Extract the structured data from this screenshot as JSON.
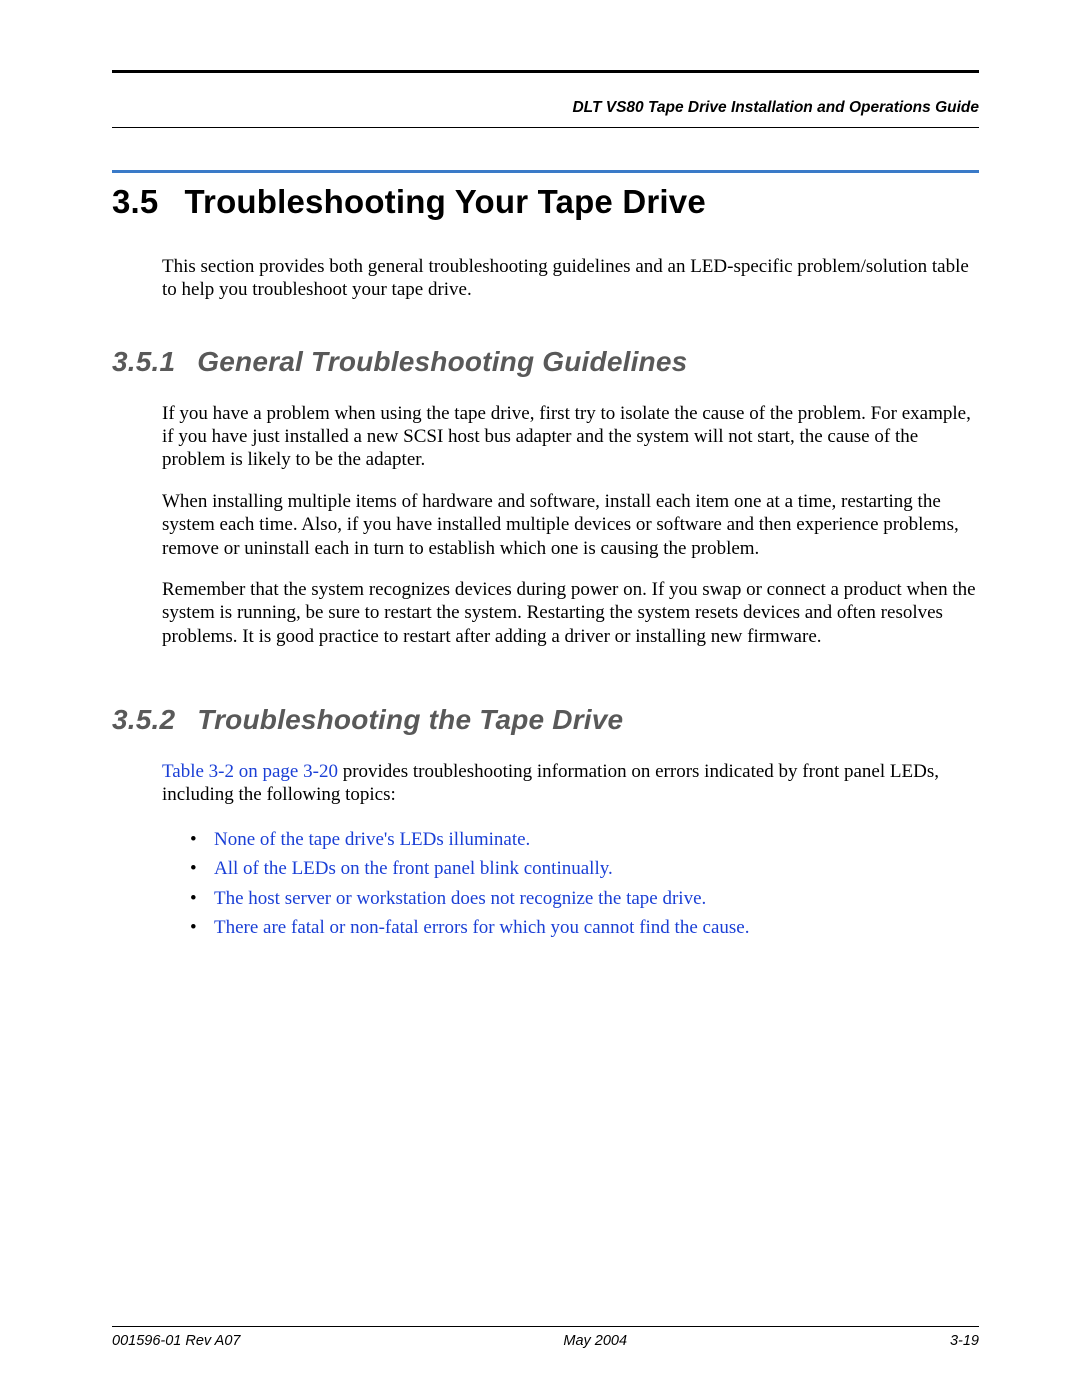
{
  "colors": {
    "text": "#000000",
    "link": "#1a3fd6",
    "accent_rule": "#3a7ac8",
    "h2_gray": "#595959",
    "background": "#ffffff"
  },
  "typography": {
    "body_family": "Times New Roman",
    "body_size_pt": 14,
    "heading_family": "Arial",
    "h1_size_pt": 25,
    "h2_size_pt": 21,
    "running_header_size_pt": 12,
    "footer_size_pt": 11
  },
  "running_header": "DLT VS80 Tape Drive Installation and Operations Guide",
  "section": {
    "number": "3.5",
    "title": "Troubleshooting Your Tape Drive",
    "intro": "This section provides both general troubleshooting guidelines and an LED-specific problem/solution table to help you troubleshoot your tape drive."
  },
  "sub1": {
    "number": "3.5.1",
    "title": "General Troubleshooting Guidelines",
    "p1": "If you have a problem when using the tape drive, first try to isolate the cause of the problem. For example, if you have just installed a new SCSI host bus adapter and the system will not start, the cause of the problem is likely to be the adapter.",
    "p2": "When installing multiple items of hardware and software, install each item one at a time, restarting the system each time. Also, if you have installed multiple devices or software and then experience problems, remove or uninstall each in turn to establish which one is causing the problem.",
    "p3": "Remember that the system recognizes devices during power on. If you swap or connect a product when the system is running, be sure to restart the system. Restarting the system resets devices and often resolves problems. It is good practice to restart after adding a driver or installing new firmware."
  },
  "sub2": {
    "number": "3.5.2",
    "title": "Troubleshooting the Tape Drive",
    "lead_link": "Table 3-2 on page 3-20",
    "lead_rest": " provides troubleshooting information on errors indicated by front panel LEDs, including the following topics:",
    "items": [
      "None of the tape drive's LEDs illuminate.",
      "All of the LEDs on the front panel blink continually.",
      "The host server or workstation does not recognize the tape drive.",
      "There are fatal or non-fatal errors for which you cannot find the cause."
    ]
  },
  "footer": {
    "left": "001596-01 Rev A07",
    "center": "May 2004",
    "right": "3-19"
  }
}
